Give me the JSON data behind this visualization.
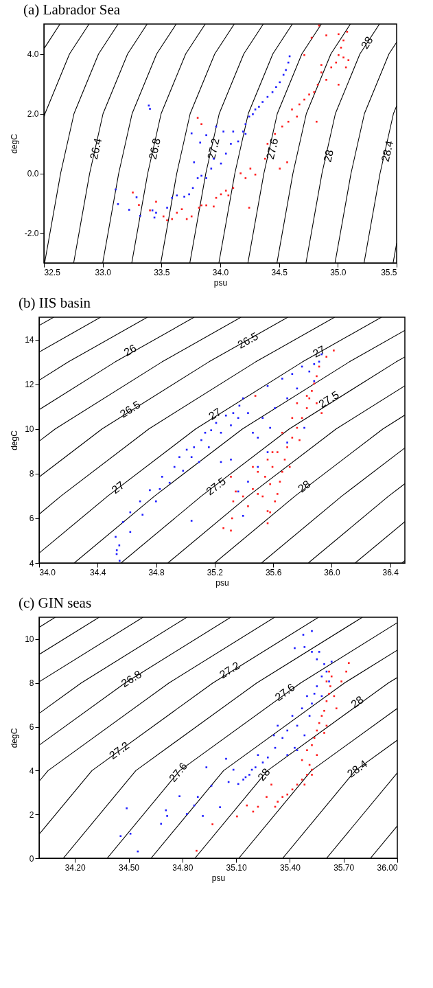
{
  "chart_data": [
    {
      "type": "scatter",
      "title": "(a) Labrador Sea",
      "xlabel": "psu",
      "ylabel": "degC",
      "xlim": [
        32.5,
        35.5
      ],
      "ylim": [
        -3,
        5
      ],
      "xticks": [
        32.5,
        {
          "value": 33,
          "label": "33.0"
        },
        33.5,
        {
          "value": 34,
          "label": "34.0"
        },
        34.5,
        {
          "value": 35,
          "label": "35.0"
        },
        35.5
      ],
      "yticks": [
        {
          "value": -2,
          "label": "-2.0"
        },
        {
          "value": 0,
          "label": "0.0"
        },
        {
          "value": 2,
          "label": "2.0"
        },
        {
          "value": 4,
          "label": "4.0"
        }
      ],
      "series": [
        {
          "type": "line",
          "color": "#000000",
          "x": [
            32.5,
            32.637
          ],
          "values": [
            4.17,
            5
          ]
        },
        {
          "type": "line",
          "color": "#000000",
          "x": [
            32.5,
            32.509,
            32.718,
            32.884
          ],
          "values": [
            1.84,
            2,
            4,
            5
          ]
        },
        {
          "type": "line",
          "color": "#000000",
          "x": [
            32.506,
            32.642,
            32.756,
            32.965,
            33.131
          ],
          "values": [
            -3,
            0,
            2,
            4,
            5
          ]
        },
        {
          "type": "line",
          "color": "#000000",
          "x": [
            32.753,
            32.889,
            33.003,
            33.212,
            33.378
          ],
          "values": [
            -3,
            0,
            2,
            4,
            5
          ]
        },
        {
          "type": "line",
          "color": "#000000",
          "x": [
            33.0,
            33.136,
            33.25,
            33.459,
            33.625
          ],
          "values": [
            -3,
            0,
            2,
            4,
            5
          ]
        },
        {
          "type": "line",
          "color": "#000000",
          "x": [
            33.247,
            33.383,
            33.497,
            33.706,
            33.872
          ],
          "values": [
            -3,
            0,
            2,
            4,
            5
          ]
        },
        {
          "type": "line",
          "color": "#000000",
          "x": [
            33.494,
            33.63,
            33.744,
            33.953,
            34.119
          ],
          "values": [
            -3,
            0,
            2,
            4,
            5
          ]
        },
        {
          "type": "line",
          "color": "#000000",
          "x": [
            33.741,
            33.877,
            33.991,
            34.2,
            34.366
          ],
          "values": [
            -3,
            0,
            2,
            4,
            5
          ]
        },
        {
          "type": "line",
          "color": "#000000",
          "x": [
            33.988,
            34.124,
            34.238,
            34.447,
            34.613
          ],
          "values": [
            -3,
            0,
            2,
            4,
            5
          ]
        },
        {
          "type": "line",
          "color": "#000000",
          "x": [
            34.235,
            34.371,
            34.485,
            34.694,
            34.86
          ],
          "values": [
            -3,
            0,
            2,
            4,
            5
          ]
        },
        {
          "type": "line",
          "color": "#000000",
          "x": [
            34.482,
            34.618,
            34.732,
            34.941,
            35.107
          ],
          "values": [
            -3,
            0,
            2,
            4,
            5
          ]
        },
        {
          "type": "line",
          "color": "#000000",
          "x": [
            34.729,
            34.865,
            34.979,
            35.188,
            35.354
          ],
          "values": [
            -3,
            0,
            2,
            4,
            5
          ]
        },
        {
          "type": "line",
          "color": "#000000",
          "x": [
            34.976,
            35.112,
            35.226,
            35.435,
            35.5
          ],
          "values": [
            -3,
            0,
            2,
            4,
            4.39
          ]
        },
        {
          "type": "line",
          "color": "#000000",
          "x": [
            35.223,
            35.359,
            35.473,
            35.5
          ],
          "values": [
            -3,
            0,
            2,
            2.26
          ]
        },
        {
          "type": "line",
          "color": "#000000",
          "x": [
            35.47,
            35.5
          ],
          "values": [
            -3,
            -2.34
          ]
        },
        {
          "marker": "square",
          "color": "#2020ff",
          "x": [
            33.11,
            33.13,
            33.225,
            33.288,
            33.319,
            33.392,
            33.402,
            33.423,
            33.44,
            33.454,
            33.548,
            33.59,
            33.631,
            33.694,
            33.735,
            33.767,
            33.808,
            33.84,
            33.881,
            33.923,
            33.944,
            33.756,
            33.777,
            33.829,
            33.965,
            34.006,
            34.048,
            34.09,
            34.11,
            34.152,
            34.194,
            34.215,
            34.246,
            34.277,
            34.298,
            34.329,
            34.36,
            34.402,
            34.444,
            34.475,
            34.506,
            34.538,
            34.558,
            34.579,
            34.59,
            33.881,
            34.027,
            34.215
          ],
          "values": [
            -0.54,
            -1.03,
            -1.22,
            -0.8,
            -1.42,
            2.27,
            2.16,
            -1.24,
            -1.48,
            -1.32,
            -1.15,
            -0.82,
            -0.74,
            -0.78,
            -0.7,
            -0.49,
            -0.16,
            -0.08,
            -0.16,
            0.16,
            0.49,
            1.34,
            0.37,
            1.03,
            1.57,
            0.33,
            0.66,
            0.99,
            1.4,
            1.07,
            1.4,
            1.65,
            1.9,
            1.98,
            2.14,
            2.23,
            2.39,
            2.56,
            2.72,
            2.89,
            3.05,
            3.3,
            3.46,
            3.71,
            3.92,
            1.28,
            1.4,
            1.32
          ]
        },
        {
          "marker": "square",
          "color": "#ff2020",
          "x": [
            33.256,
            33.308,
            33.402,
            33.454,
            33.517,
            33.548,
            33.59,
            33.631,
            33.673,
            33.715,
            33.756,
            33.819,
            33.84,
            33.881,
            33.944,
            33.965,
            34.006,
            34.048,
            34.069,
            34.11,
            34.173,
            34.215,
            34.256,
            34.298,
            34.246,
            34.381,
            34.402,
            34.465,
            34.506,
            34.569,
            34.527,
            34.579,
            34.61,
            34.652,
            34.673,
            34.715,
            34.756,
            34.798,
            34.829,
            34.86,
            34.902,
            34.944,
            34.985,
            35.006,
            35.027,
            35.048,
            35.006,
            35.079,
            35.09,
            35.069,
            35.006,
            34.819,
            34.715,
            34.777,
            34.84,
            34.902,
            33.808,
            33.84,
            34.86,
            35.048
          ],
          "values": [
            -0.64,
            -1.06,
            -1.24,
            -0.95,
            -1.44,
            -1.57,
            -1.53,
            -1.32,
            -1.2,
            -1.53,
            -1.44,
            -1.15,
            -1.07,
            -1.07,
            -1.11,
            -0.82,
            -0.7,
            -0.58,
            -0.74,
            -0.49,
            0.0,
            -0.16,
            0.16,
            -0.04,
            -1.15,
            0.49,
            0.99,
            1.32,
            0.16,
            0.37,
            1.57,
            1.73,
            2.14,
            1.9,
            2.31,
            2.47,
            2.64,
            2.72,
            2.97,
            3.38,
            3.13,
            3.55,
            3.71,
            3.96,
            4.21,
            4.45,
            4.66,
            4.74,
            3.79,
            3.55,
            2.97,
            1.73,
            3.96,
            4.54,
            4.95,
            4.62,
            1.86,
            1.65,
            3.63,
            3.88
          ]
        }
      ],
      "annotations": [
        {
          "text": "26.4",
          "x": 32.944,
          "y": 0.82
        },
        {
          "text": "26.8",
          "x": 33.444,
          "y": 0.82
        },
        {
          "text": "27.2",
          "x": 33.944,
          "y": 0.82
        },
        {
          "text": "27.6",
          "x": 34.444,
          "y": 0.82
        },
        {
          "text": "28",
          "x": 34.923,
          "y": 0.58
        },
        {
          "text": "28",
          "x": 35.25,
          "y": 4.37
        },
        {
          "text": "28.4",
          "x": 35.423,
          "y": 0.74
        }
      ]
    },
    {
      "type": "scatter",
      "title": "(b) IIS basin",
      "xlabel": "psu",
      "ylabel": "degC",
      "xlim": [
        34.0,
        36.5
      ],
      "ylim": [
        4,
        15
      ],
      "xticks": [
        {
          "value": 34,
          "label": "34.0"
        },
        34.4,
        34.8,
        35.2,
        35.6,
        {
          "value": 36,
          "label": "36.0"
        },
        36.4
      ],
      "yticks": [
        4,
        6,
        8,
        10,
        12,
        14
      ],
      "series": [
        {
          "type": "line",
          "color": "#000000",
          "x": [
            34.0,
            34.1
          ],
          "values": [
            14.63,
            15
          ]
        },
        {
          "type": "line",
          "color": "#000000",
          "x": [
            34.0,
            34.42
          ],
          "values": [
            13.44,
            15
          ]
        },
        {
          "type": "line",
          "color": "#000000",
          "x": [
            34.0,
            34.2,
            34.74
          ],
          "values": [
            12.18,
            13,
            15
          ]
        },
        {
          "type": "line",
          "color": "#000000",
          "x": [
            34.0,
            34.52,
            35.06
          ],
          "values": [
            10.86,
            13,
            15
          ]
        },
        {
          "type": "line",
          "color": "#000000",
          "x": [
            34.0,
            34.11,
            34.84,
            35.38
          ],
          "values": [
            9.45,
            10,
            13,
            15
          ]
        },
        {
          "type": "line",
          "color": "#000000",
          "x": [
            34.0,
            34.43,
            35.16,
            35.7
          ],
          "values": [
            7.85,
            10,
            13,
            15
          ]
        },
        {
          "type": "line",
          "color": "#000000",
          "x": [
            34.0,
            34.15,
            34.75,
            35.48,
            36.02
          ],
          "values": [
            6.18,
            7,
            10,
            13,
            15
          ]
        },
        {
          "type": "line",
          "color": "#000000",
          "x": [
            34.0,
            34.47,
            35.07,
            35.8,
            36.34
          ],
          "values": [
            4.44,
            7,
            10,
            13,
            15
          ]
        },
        {
          "type": "line",
          "color": "#000000",
          "x": [
            34.24,
            34.79,
            35.39,
            36.12,
            36.5
          ],
          "values": [
            4,
            7,
            10,
            13,
            14.41
          ]
        },
        {
          "type": "line",
          "color": "#000000",
          "x": [
            34.56,
            35.11,
            35.71,
            36.44,
            36.5
          ],
          "values": [
            4,
            7,
            10,
            13,
            13.22
          ]
        },
        {
          "type": "line",
          "color": "#000000",
          "x": [
            34.88,
            35.43,
            36.03,
            36.5
          ],
          "values": [
            4,
            7,
            10,
            11.93
          ]
        },
        {
          "type": "line",
          "color": "#000000",
          "x": [
            35.2,
            35.75,
            36.35,
            36.5
          ],
          "values": [
            4,
            7,
            10,
            10.62
          ]
        },
        {
          "type": "line",
          "color": "#000000",
          "x": [
            35.52,
            36.07,
            36.5
          ],
          "values": [
            4,
            7,
            9.15
          ]
        },
        {
          "type": "line",
          "color": "#000000",
          "x": [
            35.84,
            36.39,
            36.5
          ],
          "values": [
            4,
            7,
            7.55
          ]
        },
        {
          "type": "line",
          "color": "#000000",
          "x": [
            36.16,
            36.5
          ],
          "values": [
            4,
            5.85
          ]
        },
        {
          "type": "line",
          "color": "#000000",
          "x": [
            36.48,
            36.5
          ],
          "values": [
            4,
            4.11
          ]
        },
        {
          "marker": "square",
          "color": "#2020ff",
          "x": [
            34.523,
            34.531,
            34.548,
            34.573,
            34.623,
            34.623,
            34.69,
            34.707,
            34.757,
            34.799,
            34.825,
            34.841,
            34.892,
            34.925,
            34.959,
            34.984,
            35.009,
            35.042,
            35.059,
            35.093,
            35.109,
            35.135,
            35.16,
            35.176,
            35.21,
            35.243,
            35.277,
            35.311,
            35.327,
            35.361,
            35.369,
            35.394,
            35.428,
            35.461,
            35.495,
            35.528,
            35.562,
            35.579,
            35.612,
            35.662,
            35.696,
            35.73,
            35.763,
            35.797,
            35.847,
            35.88,
            35.914,
            35.931,
            35.88,
            35.813,
            35.696,
            35.562,
            35.495,
            35.428,
            35.361,
            35.311,
            35.394,
            35.243,
            35.042,
            34.55,
            34.53
          ],
          "values": [
            5.17,
            4.57,
            4.79,
            5.83,
            5.39,
            6.27,
            6.76,
            6.16,
            7.26,
            6.76,
            7.31,
            7.86,
            7.59,
            8.3,
            8.74,
            8.13,
            9.07,
            8.74,
            9.18,
            8.52,
            9.5,
            9.83,
            9.18,
            9.94,
            10.27,
            9.83,
            10.6,
            10.16,
            10.71,
            10.49,
            11.04,
            11.37,
            10.71,
            9.83,
            9.61,
            10.49,
            11.92,
            10.05,
            10.93,
            12.25,
            11.37,
            12.46,
            11.81,
            12.79,
            12.57,
            12.9,
            13.01,
            13.34,
            12.14,
            10.05,
            9.39,
            8.96,
            8.3,
            7.64,
            7.2,
            8.63,
            6.11,
            8.52,
            5.89,
            4.1,
            4.4
          ]
        },
        {
          "marker": "square",
          "color": "#ff2020",
          "x": [
            35.26,
            35.311,
            35.319,
            35.327,
            35.311,
            35.344,
            35.394,
            35.428,
            35.461,
            35.495,
            35.528,
            35.562,
            35.562,
            35.579,
            35.595,
            35.612,
            35.629,
            35.662,
            35.679,
            35.696,
            35.73,
            35.763,
            35.797,
            35.83,
            35.847,
            35.864,
            35.88,
            35.897,
            35.914,
            35.964,
            36.014,
            35.78,
            35.713,
            35.646,
            35.83,
            35.763,
            35.73,
            35.662,
            35.595,
            35.545,
            35.495,
            35.562,
            35.461,
            35.629,
            35.579,
            35.478,
            35.897,
            35.931
          ],
          "values": [
            5.56,
            5.45,
            6.0,
            6.76,
            7.86,
            7.2,
            6.98,
            6.54,
            7.31,
            8.08,
            6.98,
            6.32,
            5.78,
            7.53,
            8.3,
            6.76,
            8.96,
            8.08,
            8.63,
            9.18,
            9.61,
            10.05,
            10.49,
            10.93,
            11.37,
            11.7,
            12.03,
            12.36,
            12.79,
            13.23,
            13.51,
            9.5,
            8.3,
            7.64,
            11.48,
            11.15,
            10.49,
            9.83,
            8.96,
            7.86,
            7.09,
            8.63,
            8.3,
            7.09,
            6.27,
            11.48,
            11.15,
            10.71
          ]
        }
      ],
      "annotations": [
        {
          "text": "26",
          "x": 34.623,
          "y": 13.51
        },
        {
          "text": "26.5",
          "x": 35.428,
          "y": 13.95
        },
        {
          "text": "26.5",
          "x": 34.623,
          "y": 10.87
        },
        {
          "text": "27",
          "x": 35.914,
          "y": 13.45
        },
        {
          "text": "27",
          "x": 35.202,
          "y": 10.66
        },
        {
          "text": "27",
          "x": 34.54,
          "y": 7.37
        },
        {
          "text": "27.5",
          "x": 35.981,
          "y": 11.31
        },
        {
          "text": "27.5",
          "x": 35.21,
          "y": 7.42
        },
        {
          "text": "28",
          "x": 35.813,
          "y": 7.42
        }
      ]
    },
    {
      "type": "scatter",
      "title": "(c) GIN seas",
      "xlabel": "psu",
      "ylabel": "degC",
      "xlim": [
        34.0,
        36.0
      ],
      "ylim": [
        0,
        11
      ],
      "xticks": [
        {
          "value": 34.2,
          "label": "34.20"
        },
        {
          "value": 34.5,
          "label": "34.50"
        },
        {
          "value": 34.8,
          "label": "34.80"
        },
        {
          "value": 35.1,
          "label": "35.10"
        },
        {
          "value": 35.4,
          "label": "35.40"
        },
        {
          "value": 35.7,
          "label": "35.70"
        },
        {
          "value": 36,
          "label": "36.00"
        }
      ],
      "yticks": [
        0,
        2,
        4,
        6,
        8,
        10
      ],
      "series": [
        {
          "type": "line",
          "color": "#000000",
          "x": [
            34.0,
            34.09
          ],
          "values": [
            10.54,
            11
          ]
        },
        {
          "type": "line",
          "color": "#000000",
          "x": [
            34.0,
            34.335
          ],
          "values": [
            9.3,
            11
          ]
        },
        {
          "type": "line",
          "color": "#000000",
          "x": [
            34.0,
            34.58
          ],
          "values": [
            8.05,
            11
          ]
        },
        {
          "type": "line",
          "color": "#000000",
          "x": [
            34.0,
            34.235,
            34.825
          ],
          "values": [
            6.61,
            8,
            11
          ]
        },
        {
          "type": "line",
          "color": "#000000",
          "x": [
            34.0,
            34.48,
            35.07
          ],
          "values": [
            5.16,
            8,
            11
          ]
        },
        {
          "type": "line",
          "color": "#000000",
          "x": [
            34.0,
            34.05,
            34.725,
            35.315
          ],
          "values": [
            3.51,
            4,
            8,
            11
          ]
        },
        {
          "type": "line",
          "color": "#000000",
          "x": [
            34.0,
            34.295,
            34.97,
            35.56
          ],
          "values": [
            1.09,
            4,
            8,
            11
          ]
        },
        {
          "type": "line",
          "color": "#000000",
          "x": [
            34.135,
            34.54,
            35.215,
            35.805
          ],
          "values": [
            0,
            4,
            8,
            11
          ]
        },
        {
          "type": "line",
          "color": "#000000",
          "x": [
            34.38,
            34.785,
            35.46,
            36.0
          ],
          "values": [
            0,
            4,
            8,
            10.75
          ]
        },
        {
          "type": "line",
          "color": "#000000",
          "x": [
            34.625,
            35.03,
            35.705,
            36.0
          ],
          "values": [
            0,
            4,
            8,
            9.5
          ]
        },
        {
          "type": "line",
          "color": "#000000",
          "x": [
            34.87,
            35.275,
            35.95,
            36.0
          ],
          "values": [
            0,
            4,
            8,
            8.25
          ]
        },
        {
          "type": "line",
          "color": "#000000",
          "x": [
            35.115,
            35.52,
            36.0
          ],
          "values": [
            0,
            4,
            6.84
          ]
        },
        {
          "type": "line",
          "color": "#000000",
          "x": [
            35.36,
            35.765,
            36.0
          ],
          "values": [
            0,
            4,
            5.39
          ]
        },
        {
          "type": "line",
          "color": "#000000",
          "x": [
            35.605,
            36.0
          ],
          "values": [
            0,
            3.9
          ]
        },
        {
          "type": "line",
          "color": "#000000",
          "x": [
            35.85,
            36.0
          ],
          "values": [
            0,
            1.48
          ]
        },
        {
          "marker": "square",
          "color": "#2020ff",
          "x": [
            34.455,
            34.51,
            34.551,
            34.489,
            34.681,
            34.708,
            34.715,
            34.784,
            34.825,
            34.866,
            34.886,
            34.914,
            34.934,
            34.962,
            35.01,
            35.044,
            35.058,
            35.085,
            35.112,
            35.14,
            35.153,
            35.174,
            35.188,
            35.208,
            35.222,
            35.249,
            35.277,
            35.318,
            35.311,
            35.332,
            35.359,
            35.386,
            35.414,
            35.427,
            35.441,
            35.468,
            35.482,
            35.496,
            35.51,
            35.523,
            35.551,
            35.578,
            35.592,
            35.619,
            35.633,
            35.551,
            35.523,
            35.482,
            35.427,
            35.475,
            35.523,
            35.564,
            35.537,
            35.578,
            35.605,
            35.441,
            35.386
          ],
          "values": [
            1.01,
            1.12,
            0.31,
            2.28,
            1.57,
            2.19,
            1.93,
            2.83,
            2.02,
            2.41,
            2.8,
            1.93,
            4.15,
            3.31,
            2.33,
            4.54,
            3.48,
            4.04,
            3.39,
            3.59,
            3.7,
            3.81,
            4.04,
            4.15,
            4.71,
            4.37,
            4.6,
            5.04,
            5.61,
            6.05,
            5.49,
            5.83,
            6.5,
            5.04,
            6.05,
            6.84,
            5.61,
            7.4,
            6.5,
            7.06,
            7.85,
            8.3,
            8.86,
            8.07,
            8.97,
            9.08,
            9.42,
            9.64,
            9.59,
            10.2,
            10.37,
            9.42,
            7.51,
            7.4,
            8.52,
            4.93,
            4.71
          ]
        },
        {
          "marker": "square",
          "color": "#ff2020",
          "x": [
            34.879,
            34.968,
            35.105,
            35.16,
            35.195,
            35.222,
            35.27,
            35.297,
            35.318,
            35.332,
            35.359,
            35.386,
            35.414,
            35.441,
            35.468,
            35.496,
            35.482,
            35.523,
            35.468,
            35.496,
            35.523,
            35.537,
            35.551,
            35.564,
            35.578,
            35.592,
            35.605,
            35.619,
            35.626,
            35.605,
            35.619,
            35.633,
            35.647,
            35.66,
            35.688,
            35.715,
            35.729,
            35.592,
            35.551,
            35.51,
            35.523,
            35.605
          ],
          "values": [
            0.34,
            1.55,
            1.91,
            2.41,
            2.13,
            2.35,
            2.8,
            3.36,
            2.35,
            2.58,
            2.8,
            2.91,
            3.14,
            3.36,
            3.59,
            3.81,
            3.36,
            4.04,
            4.48,
            4.93,
            5.16,
            5.49,
            5.83,
            6.17,
            6.5,
            6.73,
            7.17,
            7.51,
            7.85,
            8.07,
            8.52,
            8.3,
            7.4,
            6.84,
            8.07,
            8.52,
            8.91,
            5.72,
            4.71,
            4.26,
            3.81,
            6.05
          ]
        }
      ],
      "annotations": [
        {
          "text": "26.8",
          "x": 34.516,
          "y": 8.18
        },
        {
          "text": "27.2",
          "x": 35.064,
          "y": 8.58
        },
        {
          "text": "27.6",
          "x": 35.373,
          "y": 7.57
        },
        {
          "text": "28",
          "x": 35.777,
          "y": 7.12
        },
        {
          "text": "27.2",
          "x": 34.448,
          "y": 4.91
        },
        {
          "text": "27.6",
          "x": 34.777,
          "y": 3.92
        },
        {
          "text": "28",
          "x": 35.256,
          "y": 3.81
        },
        {
          "text": "28.4",
          "x": 35.777,
          "y": 4.07
        }
      ]
    }
  ]
}
